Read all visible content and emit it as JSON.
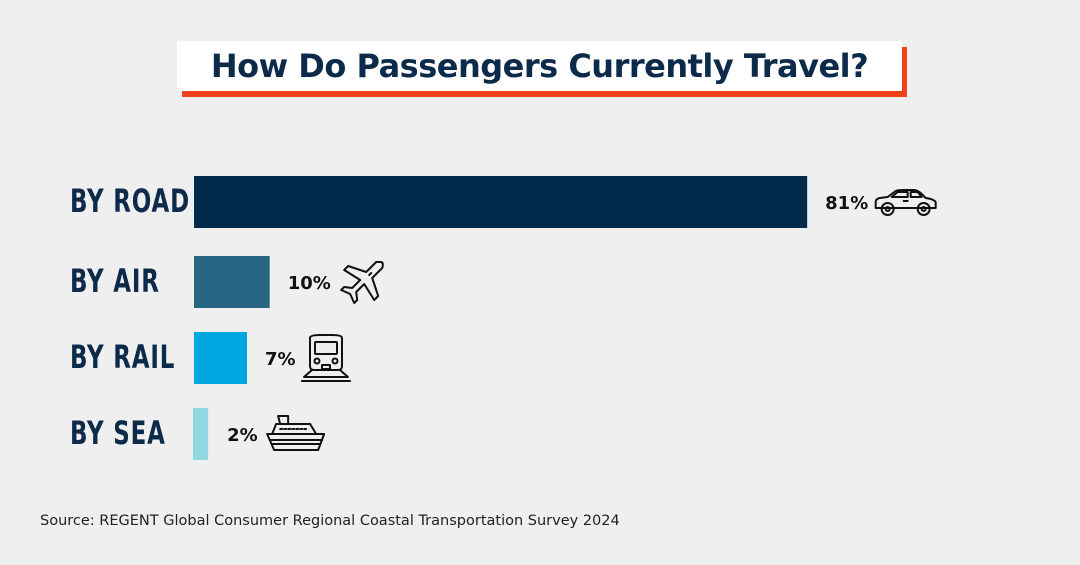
{
  "title": "How Do Passengers Currently Travel?",
  "source": "Source: REGENT Global Consumer Regional Coastal Transportation Survey 2024",
  "colors": {
    "title_accent": "#f0401a",
    "title_text": "#0c2a4a",
    "background": "#efefef"
  },
  "chart_data": {
    "type": "bar",
    "orientation": "horizontal",
    "title": "How Do Passengers Currently Travel?",
    "xlabel": "",
    "ylabel": "",
    "xlim": [
      0,
      100
    ],
    "grid": false,
    "categories": [
      "BY ROAD",
      "BY AIR",
      "BY RAIL",
      "BY SEA"
    ],
    "values": [
      81,
      10,
      7,
      2
    ],
    "value_labels": [
      "81%",
      "10%",
      "7%",
      "2%"
    ],
    "bar_colors": [
      "#022b4b",
      "#276582",
      "#00a7e0",
      "#8fd8e0"
    ],
    "icons": [
      "car-icon",
      "airplane-icon",
      "train-icon",
      "ship-icon"
    ],
    "unit": "%"
  }
}
